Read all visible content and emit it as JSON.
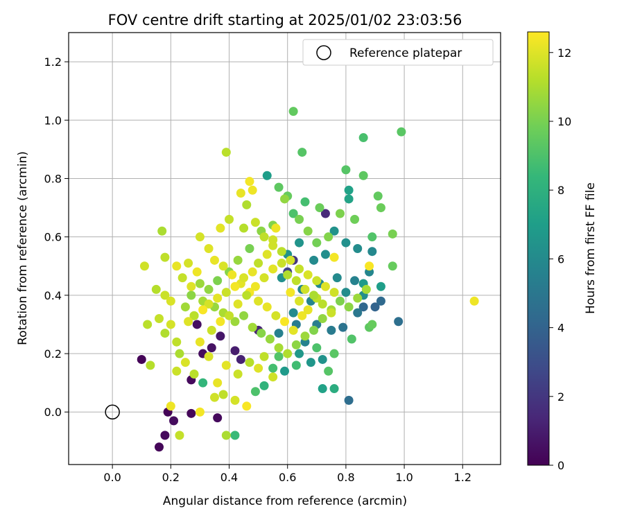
{
  "chart_data": {
    "type": "scatter",
    "title": "FOV centre drift starting at 2025/01/02 23:03:56",
    "xlabel": "Angular distance from reference (arcmin)",
    "ylabel": "Rotation from reference (arcmin)",
    "xlim": [
      -0.15,
      1.33
    ],
    "ylim": [
      -0.18,
      1.3
    ],
    "x_ticks": [
      "0.0",
      "0.2",
      "0.4",
      "0.6",
      "0.8",
      "1.0",
      "1.2"
    ],
    "x_tick_values": [
      0.0,
      0.2,
      0.4,
      0.6,
      0.8,
      1.0,
      1.2
    ],
    "y_ticks": [
      "0.0",
      "0.2",
      "0.4",
      "0.6",
      "0.8",
      "1.0",
      "1.2"
    ],
    "y_tick_values": [
      0.0,
      0.2,
      0.4,
      0.6,
      0.8,
      1.0,
      1.2
    ],
    "grid": true,
    "legend": {
      "location": "upper right",
      "entries": [
        "Reference platepar"
      ]
    },
    "reference_point": {
      "x": 0.0,
      "y": 0.0
    },
    "colorbar": {
      "label": "Hours from first FF file",
      "range": [
        0,
        12.6
      ],
      "ticks": [
        "0",
        "2",
        "4",
        "6",
        "8",
        "10",
        "12"
      ],
      "tick_values": [
        0,
        2,
        4,
        6,
        8,
        10,
        12
      ],
      "colormap": "viridis"
    },
    "points": [
      [
        0.1,
        0.18,
        0.1
      ],
      [
        0.16,
        -0.12,
        0.2
      ],
      [
        0.18,
        -0.08,
        0.3
      ],
      [
        0.19,
        0.0,
        0.1
      ],
      [
        0.21,
        -0.03,
        0.4
      ],
      [
        0.27,
        -0.005,
        0.2
      ],
      [
        0.27,
        0.11,
        0.3
      ],
      [
        0.29,
        0.3,
        0.5
      ],
      [
        0.31,
        0.2,
        0.4
      ],
      [
        0.36,
        -0.02,
        0.3
      ],
      [
        0.34,
        0.22,
        0.6
      ],
      [
        0.37,
        0.26,
        0.8
      ],
      [
        0.42,
        0.21,
        1.0
      ],
      [
        0.44,
        0.18,
        1.2
      ],
      [
        0.5,
        0.28,
        1.3
      ],
      [
        0.73,
        0.68,
        1.5
      ],
      [
        0.62,
        0.52,
        2.0
      ],
      [
        0.6,
        0.48,
        2.5
      ],
      [
        0.81,
        0.04,
        4.5
      ],
      [
        0.86,
        0.36,
        4.2
      ],
      [
        0.9,
        0.36,
        4.0
      ],
      [
        0.92,
        0.38,
        4.3
      ],
      [
        0.98,
        0.31,
        4.6
      ],
      [
        0.84,
        0.34,
        5.0
      ],
      [
        0.79,
        0.29,
        4.8
      ],
      [
        0.75,
        0.28,
        5.2
      ],
      [
        0.7,
        0.3,
        5.4
      ],
      [
        0.66,
        0.24,
        5.6
      ],
      [
        0.63,
        0.3,
        5.3
      ],
      [
        0.57,
        0.27,
        5.5
      ],
      [
        0.65,
        0.42,
        5.8
      ],
      [
        0.68,
        0.38,
        5.7
      ],
      [
        0.71,
        0.44,
        5.9
      ],
      [
        0.77,
        0.46,
        6.0
      ],
      [
        0.8,
        0.41,
        6.1
      ],
      [
        0.83,
        0.45,
        5.6
      ],
      [
        0.86,
        0.4,
        6.2
      ],
      [
        0.88,
        0.48,
        5.8
      ],
      [
        0.89,
        0.55,
        5.9
      ],
      [
        0.84,
        0.56,
        6.1
      ],
      [
        0.8,
        0.58,
        6.3
      ],
      [
        0.76,
        0.62,
        6.4
      ],
      [
        0.73,
        0.54,
        6.2
      ],
      [
        0.69,
        0.52,
        6.0
      ],
      [
        0.64,
        0.58,
        6.5
      ],
      [
        0.6,
        0.54,
        6.4
      ],
      [
        0.58,
        0.46,
        6.3
      ],
      [
        0.62,
        0.34,
        6.0
      ],
      [
        0.72,
        0.18,
        6.4
      ],
      [
        0.68,
        0.17,
        6.6
      ],
      [
        0.64,
        0.2,
        6.7
      ],
      [
        0.59,
        0.14,
        6.8
      ],
      [
        0.53,
        0.81,
        7.0
      ],
      [
        0.81,
        0.76,
        7.2
      ],
      [
        0.81,
        0.73,
        7.3
      ],
      [
        0.86,
        0.44,
        6.8
      ],
      [
        0.92,
        0.43,
        7.0
      ],
      [
        0.72,
        0.08,
        7.2
      ],
      [
        0.76,
        0.08,
        7.8
      ],
      [
        0.52,
        0.09,
        8.1
      ],
      [
        0.31,
        0.1,
        8.3
      ],
      [
        0.42,
        -0.08,
        8.5
      ],
      [
        0.49,
        0.07,
        9.0
      ],
      [
        0.55,
        0.15,
        8.8
      ],
      [
        0.57,
        0.19,
        9.1
      ],
      [
        0.63,
        0.16,
        8.7
      ],
      [
        0.7,
        0.22,
        9.0
      ],
      [
        0.74,
        0.14,
        9.2
      ],
      [
        0.76,
        0.2,
        9.3
      ],
      [
        0.82,
        0.25,
        9.1
      ],
      [
        0.88,
        0.29,
        9.4
      ],
      [
        0.89,
        0.3,
        9.6
      ],
      [
        0.86,
        0.94,
        8.9
      ],
      [
        0.99,
        0.96,
        9.3
      ],
      [
        0.62,
        1.03,
        9.5
      ],
      [
        0.65,
        0.89,
        9.2
      ],
      [
        0.57,
        0.77,
        9.4
      ],
      [
        0.6,
        0.74,
        9.6
      ],
      [
        0.62,
        0.68,
        9.0
      ],
      [
        0.66,
        0.72,
        8.8
      ],
      [
        0.71,
        0.7,
        9.7
      ],
      [
        0.8,
        0.83,
        9.2
      ],
      [
        0.86,
        0.81,
        9.4
      ],
      [
        0.91,
        0.74,
        9.5
      ],
      [
        0.92,
        0.7,
        9.7
      ],
      [
        0.89,
        0.6,
        9.1
      ],
      [
        0.96,
        0.61,
        10.0
      ],
      [
        0.96,
        0.5,
        9.6
      ],
      [
        0.83,
        0.66,
        9.8
      ],
      [
        0.78,
        0.68,
        10.1
      ],
      [
        0.74,
        0.6,
        10.2
      ],
      [
        0.7,
        0.58,
        9.9
      ],
      [
        0.67,
        0.62,
        10.3
      ],
      [
        0.64,
        0.66,
        10.0
      ],
      [
        0.59,
        0.73,
        10.5
      ],
      [
        0.55,
        0.64,
        10.2
      ],
      [
        0.51,
        0.62,
        10.4
      ],
      [
        0.47,
        0.56,
        10.0
      ],
      [
        0.43,
        0.52,
        10.6
      ],
      [
        0.4,
        0.48,
        10.3
      ],
      [
        0.36,
        0.45,
        10.1
      ],
      [
        0.33,
        0.42,
        10.5
      ],
      [
        0.3,
        0.44,
        10.7
      ],
      [
        0.27,
        0.4,
        10.4
      ],
      [
        0.25,
        0.36,
        10.8
      ],
      [
        0.28,
        0.33,
        10.2
      ],
      [
        0.31,
        0.38,
        10.9
      ],
      [
        0.35,
        0.36,
        10.6
      ],
      [
        0.38,
        0.34,
        11.0
      ],
      [
        0.42,
        0.31,
        10.7
      ],
      [
        0.45,
        0.33,
        10.5
      ],
      [
        0.48,
        0.29,
        10.8
      ],
      [
        0.51,
        0.27,
        10.3
      ],
      [
        0.54,
        0.25,
        10.6
      ],
      [
        0.57,
        0.22,
        10.9
      ],
      [
        0.6,
        0.2,
        11.1
      ],
      [
        0.63,
        0.23,
        10.4
      ],
      [
        0.66,
        0.26,
        10.7
      ],
      [
        0.69,
        0.28,
        10.2
      ],
      [
        0.72,
        0.32,
        10.5
      ],
      [
        0.75,
        0.35,
        10.8
      ],
      [
        0.78,
        0.38,
        10.1
      ],
      [
        0.81,
        0.36,
        10.4
      ],
      [
        0.84,
        0.39,
        10.7
      ],
      [
        0.87,
        0.42,
        10.9
      ],
      [
        0.39,
        0.89,
        11.3
      ],
      [
        0.4,
        0.66,
        11.5
      ],
      [
        0.45,
        0.63,
        11.2
      ],
      [
        0.49,
        0.65,
        11.6
      ],
      [
        0.52,
        0.6,
        11.4
      ],
      [
        0.55,
        0.57,
        11.7
      ],
      [
        0.58,
        0.55,
        11.3
      ],
      [
        0.61,
        0.52,
        11.8
      ],
      [
        0.64,
        0.49,
        11.5
      ],
      [
        0.67,
        0.47,
        11.9
      ],
      [
        0.7,
        0.45,
        11.6
      ],
      [
        0.73,
        0.43,
        12.0
      ],
      [
        0.76,
        0.41,
        11.7
      ],
      [
        0.46,
        0.71,
        11.1
      ],
      [
        0.44,
        0.75,
        12.2
      ],
      [
        0.47,
        0.79,
        12.4
      ],
      [
        0.48,
        0.76,
        12.3
      ],
      [
        0.37,
        0.63,
        12.1
      ],
      [
        0.3,
        0.6,
        11.8
      ],
      [
        0.33,
        0.56,
        12.0
      ],
      [
        0.35,
        0.52,
        12.2
      ],
      [
        0.38,
        0.5,
        11.9
      ],
      [
        0.41,
        0.47,
        12.3
      ],
      [
        0.44,
        0.44,
        12.1
      ],
      [
        0.47,
        0.41,
        12.4
      ],
      [
        0.5,
        0.38,
        12.0
      ],
      [
        0.53,
        0.36,
        12.2
      ],
      [
        0.56,
        0.33,
        11.8
      ],
      [
        0.59,
        0.31,
        12.5
      ],
      [
        0.62,
        0.28,
        12.1
      ],
      [
        0.65,
        0.33,
        12.3
      ],
      [
        0.76,
        0.53,
        12.4
      ],
      [
        0.88,
        0.5,
        12.5
      ],
      [
        1.24,
        0.38,
        12.3
      ],
      [
        0.17,
        0.62,
        11.0
      ],
      [
        0.18,
        0.53,
        11.4
      ],
      [
        0.11,
        0.5,
        11.7
      ],
      [
        0.15,
        0.42,
        11.2
      ],
      [
        0.18,
        0.4,
        11.6
      ],
      [
        0.2,
        0.38,
        11.9
      ],
      [
        0.22,
        0.5,
        12.2
      ],
      [
        0.24,
        0.46,
        11.5
      ],
      [
        0.26,
        0.51,
        11.8
      ],
      [
        0.27,
        0.43,
        12.0
      ],
      [
        0.29,
        0.48,
        12.3
      ],
      [
        0.12,
        0.3,
        11.3
      ],
      [
        0.16,
        0.32,
        11.5
      ],
      [
        0.18,
        0.27,
        11.1
      ],
      [
        0.2,
        0.3,
        11.8
      ],
      [
        0.22,
        0.24,
        11.4
      ],
      [
        0.23,
        0.2,
        11.0
      ],
      [
        0.13,
        0.16,
        11.2
      ],
      [
        0.22,
        0.14,
        11.6
      ],
      [
        0.25,
        0.17,
        11.9
      ],
      [
        0.28,
        0.13,
        11.3
      ],
      [
        0.2,
        0.02,
        12.3
      ],
      [
        0.23,
        -0.08,
        11.5
      ],
      [
        0.3,
        0.0,
        12.4
      ],
      [
        0.35,
        0.05,
        11.7
      ],
      [
        0.36,
        0.1,
        12.2
      ],
      [
        0.38,
        0.06,
        11.4
      ],
      [
        0.39,
        -0.08,
        11.0
      ],
      [
        0.42,
        0.04,
        11.8
      ],
      [
        0.46,
        0.02,
        12.5
      ],
      [
        0.39,
        0.16,
        12.1
      ],
      [
        0.43,
        0.13,
        11.6
      ],
      [
        0.47,
        0.17,
        11.2
      ],
      [
        0.5,
        0.15,
        12.0
      ],
      [
        0.52,
        0.19,
        11.4
      ],
      [
        0.55,
        0.12,
        11.7
      ],
      [
        0.33,
        0.19,
        11.9
      ],
      [
        0.3,
        0.24,
        12.2
      ],
      [
        0.34,
        0.28,
        11.6
      ],
      [
        0.37,
        0.31,
        12.4
      ],
      [
        0.4,
        0.33,
        11.5
      ],
      [
        0.43,
        0.37,
        12.0
      ],
      [
        0.46,
        0.4,
        11.3
      ],
      [
        0.49,
        0.43,
        12.3
      ],
      [
        0.52,
        0.46,
        11.8
      ],
      [
        0.55,
        0.49,
        12.1
      ],
      [
        0.58,
        0.51,
        11.6
      ],
      [
        0.61,
        0.41,
        12.4
      ],
      [
        0.64,
        0.38,
        11.9
      ],
      [
        0.67,
        0.35,
        12.2
      ],
      [
        0.7,
        0.39,
        11.4
      ],
      [
        0.56,
        0.63,
        12.3
      ],
      [
        0.55,
        0.59,
        11.7
      ],
      [
        0.53,
        0.54,
        12.0
      ],
      [
        0.5,
        0.51,
        11.4
      ],
      [
        0.48,
        0.48,
        12.2
      ],
      [
        0.45,
        0.46,
        11.9
      ],
      [
        0.42,
        0.43,
        12.4
      ],
      [
        0.39,
        0.41,
        11.6
      ],
      [
        0.36,
        0.39,
        12.1
      ],
      [
        0.33,
        0.37,
        11.8
      ],
      [
        0.31,
        0.35,
        12.5
      ],
      [
        0.28,
        0.33,
        11.3
      ],
      [
        0.26,
        0.31,
        12.0
      ],
      [
        0.6,
        0.47,
        11.1
      ],
      [
        0.63,
        0.45,
        11.4
      ],
      [
        0.66,
        0.42,
        11.7
      ],
      [
        0.69,
        0.4,
        11.0
      ],
      [
        0.72,
        0.37,
        11.3
      ],
      [
        0.75,
        0.34,
        11.6
      ]
    ]
  }
}
